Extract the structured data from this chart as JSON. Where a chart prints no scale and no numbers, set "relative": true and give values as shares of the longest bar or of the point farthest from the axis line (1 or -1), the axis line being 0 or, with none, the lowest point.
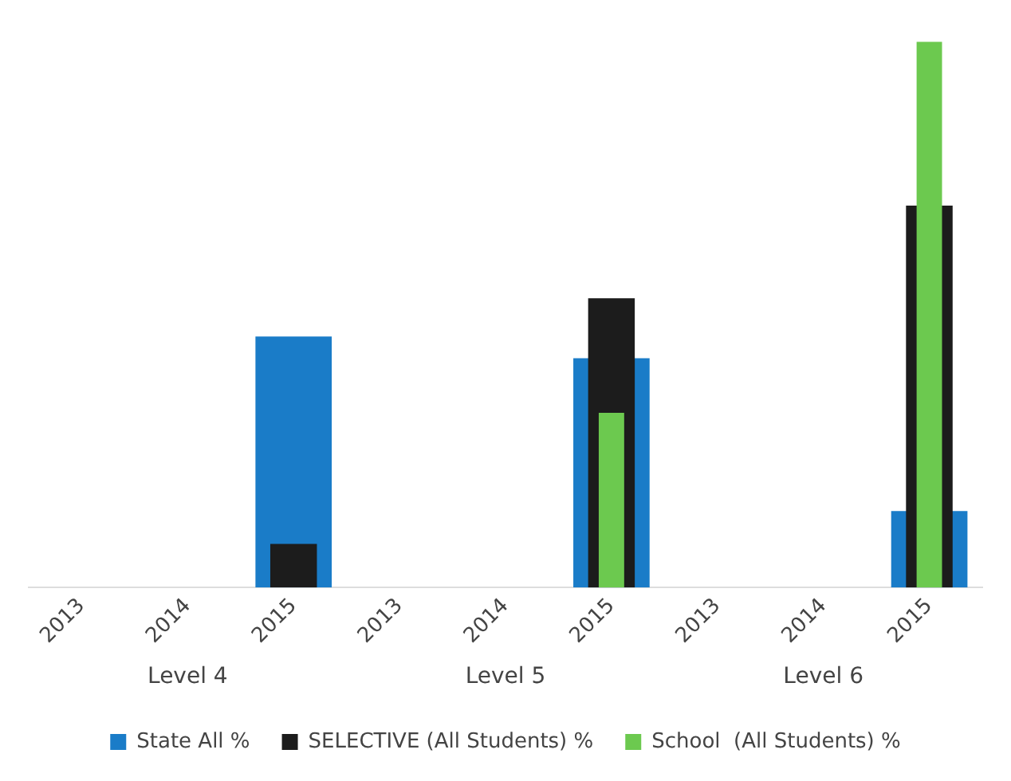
{
  "chart_data": {
    "type": "bar",
    "relative": true,
    "categories": [
      "2013",
      "2014",
      "2015",
      "2013",
      "2014",
      "2015",
      "2013",
      "2014",
      "2015"
    ],
    "series": [
      {
        "name": "State All %",
        "color": "#1a7cc8",
        "values": [
          null,
          null,
          0.46,
          null,
          null,
          0.42,
          null,
          null,
          0.14
        ]
      },
      {
        "name": "SELECTIVE (All Students) %",
        "color": "#1c1c1c",
        "values": [
          null,
          null,
          0.08,
          null,
          null,
          0.53,
          null,
          null,
          0.7
        ]
      },
      {
        "name": "School  (All Students) %",
        "color": "#6cc94f",
        "values": [
          null,
          null,
          null,
          null,
          null,
          0.32,
          null,
          null,
          1
        ]
      }
    ],
    "annotations": [
      "Level 4",
      "Level 5",
      "Level 6"
    ],
    "legend": "bottom",
    "grid": false
  }
}
